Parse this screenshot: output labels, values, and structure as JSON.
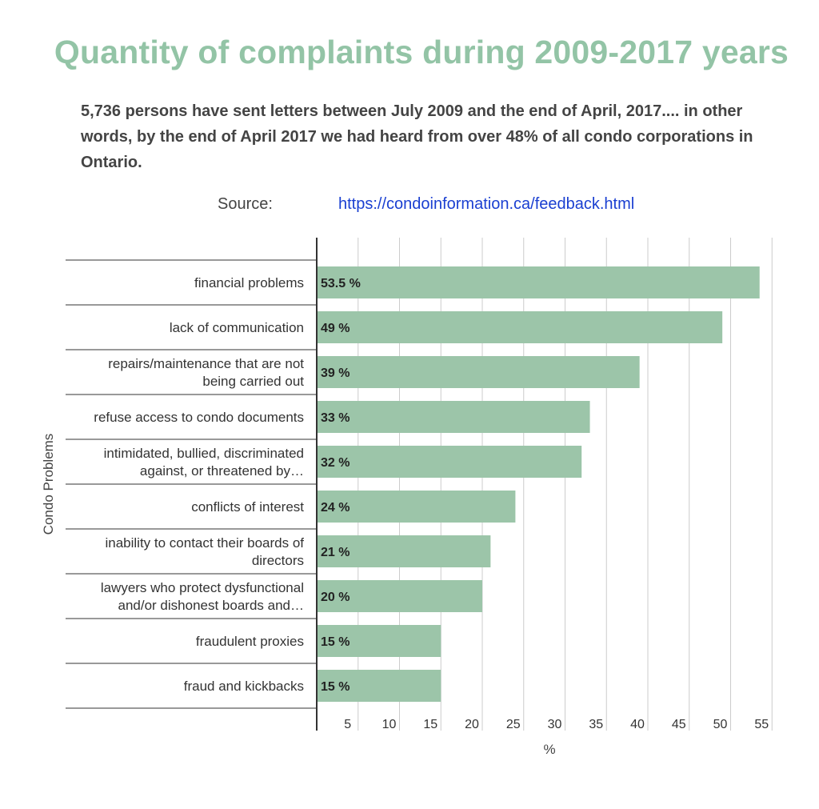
{
  "header": {
    "title": "Quantity of complaints during 2009-2017 years",
    "intro": "5,736  persons  have sent letters between July 2009 and the end of April, 2017.... in other words, by the end of April 2017  we had heard from over 48% of all condo corporations in Ontario.",
    "source_label": "Source:",
    "source_link": "https://condoinformation.ca/feedback.html"
  },
  "chart_data": {
    "type": "bar",
    "orientation": "horizontal",
    "ylabel": "Condo Problems",
    "xlabel": "%",
    "xlim": [
      0,
      55
    ],
    "xticks": [
      5,
      10,
      15,
      20,
      25,
      30,
      35,
      40,
      45,
      50,
      55
    ],
    "grid": true,
    "bar_color": "#9cc5a9",
    "categories": [
      [
        "financial problems"
      ],
      [
        "lack of communication"
      ],
      [
        "repairs/maintenance that are not",
        "being carried out"
      ],
      [
        "refuse access to condo documents"
      ],
      [
        "intimidated, bullied, discriminated",
        "against, or threatened by…"
      ],
      [
        "conflicts of interest"
      ],
      [
        "inability to contact their boards of",
        "directors"
      ],
      [
        "lawyers who protect dysfunctional",
        "and/or dishonest boards and…"
      ],
      [
        "fraudulent proxies"
      ],
      [
        "fraud and kickbacks"
      ]
    ],
    "values": [
      53.5,
      49,
      39,
      33,
      32,
      24,
      21,
      20,
      15,
      15
    ],
    "data_labels": [
      "53.5 %",
      "49 %",
      "39 %",
      "33 %",
      "32 %",
      "24 %",
      "21 %",
      "20 %",
      "15 %",
      "15 %"
    ]
  }
}
